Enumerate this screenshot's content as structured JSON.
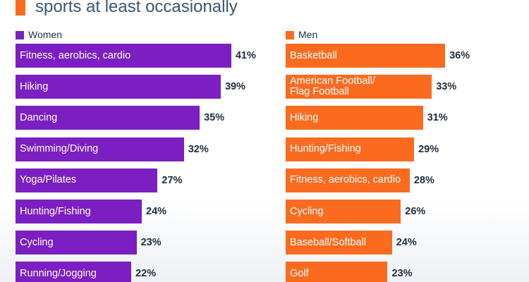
{
  "header": {
    "title": "sports at least occasionally"
  },
  "chart_data": [
    {
      "type": "bar",
      "categories": [
        "Fitness, aerobics, cardio",
        "Hiking",
        "Dancing",
        "Swimming/Diving",
        "Yoga/Pilates",
        "Hunting/Fishing",
        "Cycling",
        "Running/Jogging"
      ],
      "series": [
        {
          "name": "Women",
          "color": "#7b1fc2",
          "values": [
            41,
            39,
            35,
            32,
            27,
            24,
            23,
            22
          ],
          "value_labels": [
            "41%",
            "39%",
            "35%",
            "32%",
            "27%",
            "24%",
            "23%",
            "22%"
          ]
        }
      ]
    },
    {
      "type": "bar",
      "categories": [
        "Basketball",
        "American Football/\nFlag Football",
        "Hiking",
        "Hunting/Fishing",
        "Fitness, aerobics, cardio",
        "Cycling",
        "Baseball/Softball",
        "Golf"
      ],
      "series": [
        {
          "name": "Men",
          "color": "#fa6b20",
          "values": [
            36,
            33,
            31,
            29,
            28,
            26,
            24,
            23
          ],
          "value_labels": [
            "36%",
            "33%",
            "31%",
            "29%",
            "28%",
            "26%",
            "24%",
            "23%"
          ]
        }
      ]
    }
  ]
}
